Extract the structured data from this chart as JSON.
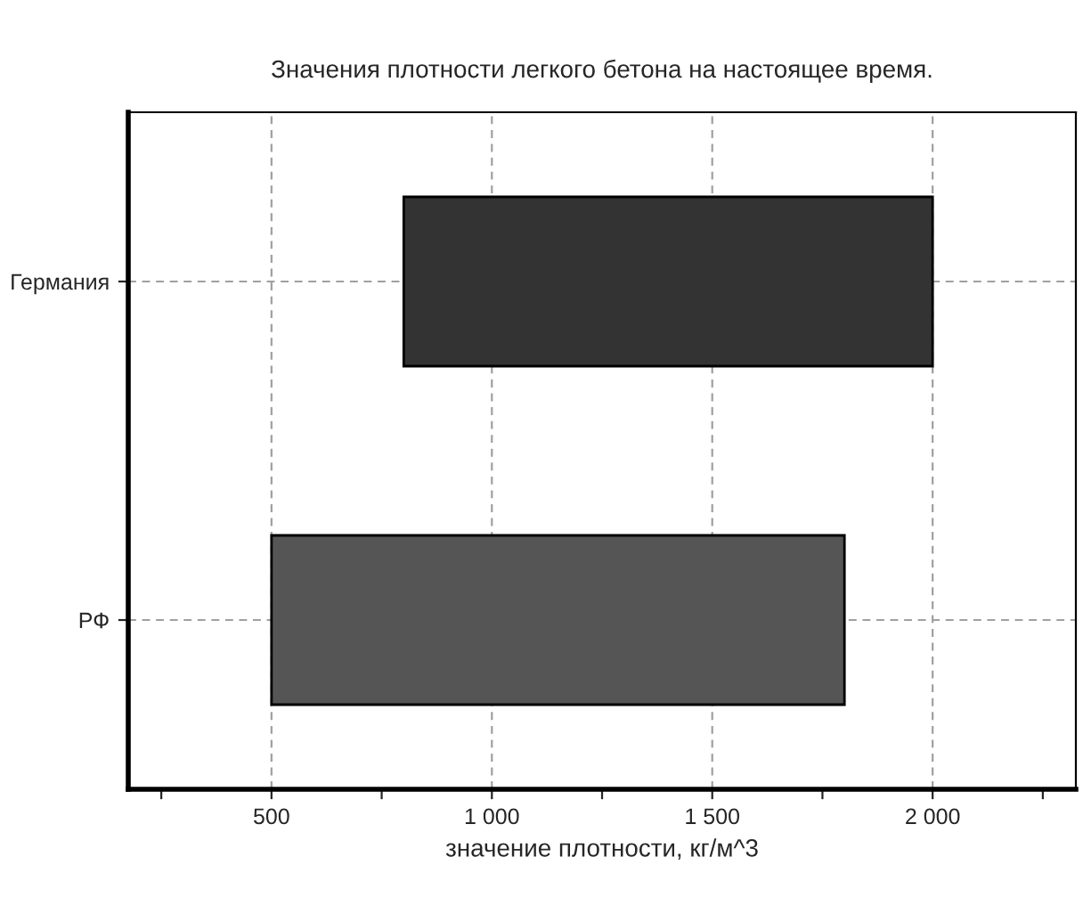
{
  "chart_data": {
    "type": "bar",
    "orientation": "horizontal",
    "title": "Значения плотности легкого бетона на настоящее время.",
    "xlabel": "значение плотности, кг/м^3",
    "categories": [
      "Германия",
      "РФ"
    ],
    "base": [
      800,
      500
    ],
    "values": [
      1200,
      1300
    ],
    "colors": [
      "#333333",
      "#555555"
    ],
    "xlim": [
      175,
      2325
    ],
    "xticks": [
      {
        "value": 250,
        "label": null
      },
      {
        "value": 500,
        "label": "500"
      },
      {
        "value": 750,
        "label": null
      },
      {
        "value": 1000,
        "label": "1 000"
      },
      {
        "value": 1250,
        "label": null
      },
      {
        "value": 1500,
        "label": "1 500"
      },
      {
        "value": 1750,
        "label": null
      },
      {
        "value": 2000,
        "label": "2 000"
      },
      {
        "value": 2250,
        "label": null
      }
    ],
    "grid": true,
    "legend": false
  }
}
